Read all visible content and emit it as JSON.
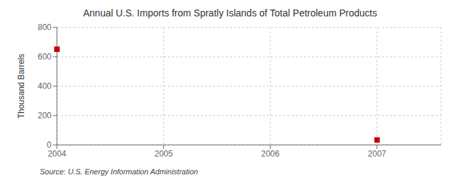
{
  "chart_data": {
    "type": "scatter",
    "title": "Annual U.S. Imports from Spratly Islands of Total Petroleum Products",
    "y_label": "Thousand Barrels",
    "annotations": [
      "Source: U.S. Energy Information Administration"
    ],
    "x": [
      2004,
      2007
    ],
    "values": [
      651,
      34
    ],
    "color": "#cc0000",
    "marker": "square",
    "xlim": [
      2004,
      2007.6
    ],
    "ylim": [
      0,
      800
    ],
    "xticks": [
      2004,
      2005,
      2006,
      2007
    ],
    "yticks": [
      0,
      200,
      400,
      600,
      800
    ],
    "grid": true
  }
}
